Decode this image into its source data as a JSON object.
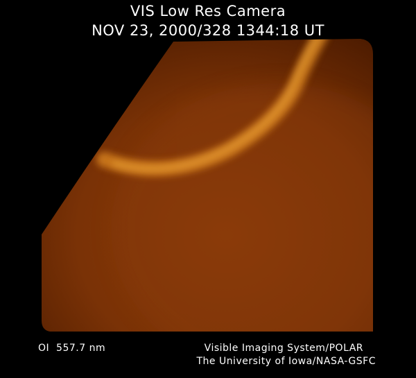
{
  "header": {
    "title": "VIS Low Res Camera",
    "timestamp": "NOV 23, 2000/328 1344:18 UT"
  },
  "footer": {
    "filter": "OI  557.7 nm",
    "system": "Visible Imaging System/POLAR",
    "institution": "The University of Iowa/NASA-GSFC"
  },
  "colors": {
    "background": "#000000",
    "glow_dim": "#5a1f00",
    "glow_mid": "#a0480a",
    "glow_bright": "#f0a030",
    "text": "#ffffff"
  }
}
